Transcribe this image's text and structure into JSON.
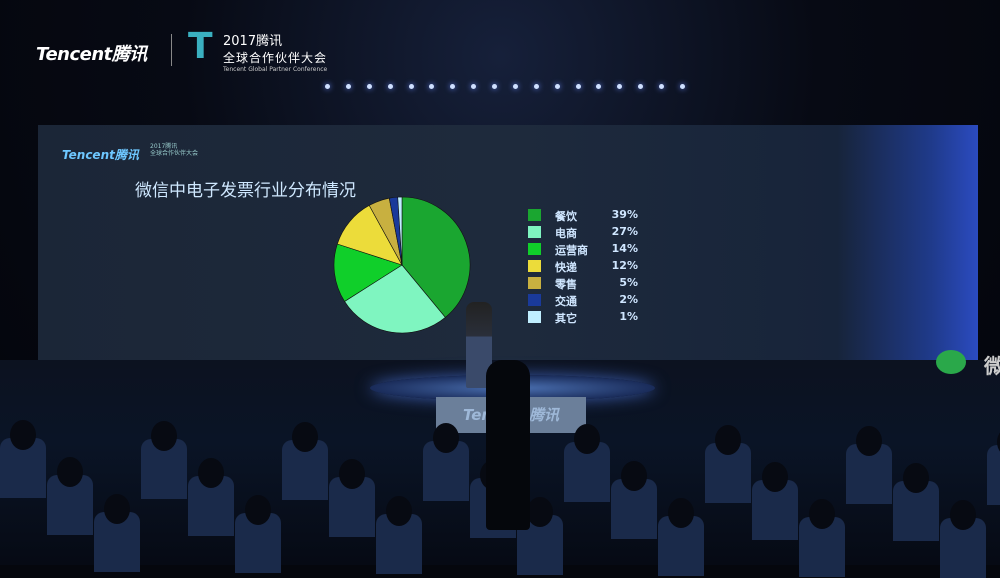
{
  "event": {
    "brand": "Tencent腾讯",
    "year_title": "2017腾讯",
    "name": "全球合作伙伴大会",
    "english": "Tencent Global Partner Conference",
    "podium_text": "Tencent腾讯",
    "side_glyph": "微"
  },
  "chart_data": {
    "type": "pie",
    "title": "微信中电子发票行业分布情况",
    "start": "top",
    "direction": "clockwise",
    "legend_position": "right",
    "categories": [
      "餐饮",
      "电商",
      "运营商",
      "快递",
      "零售",
      "交通",
      "其它"
    ],
    "values": [
      39,
      27,
      14,
      12,
      5,
      2,
      1
    ],
    "labels": [
      "39%",
      "27%",
      "14%",
      "12%",
      "5%",
      "2%",
      "1%"
    ],
    "colors": [
      "#1aa630",
      "#7ff5c0",
      "#10cf2a",
      "#ecdc3a",
      "#c8b040",
      "#1a3a9a",
      "#c0eeff"
    ]
  }
}
